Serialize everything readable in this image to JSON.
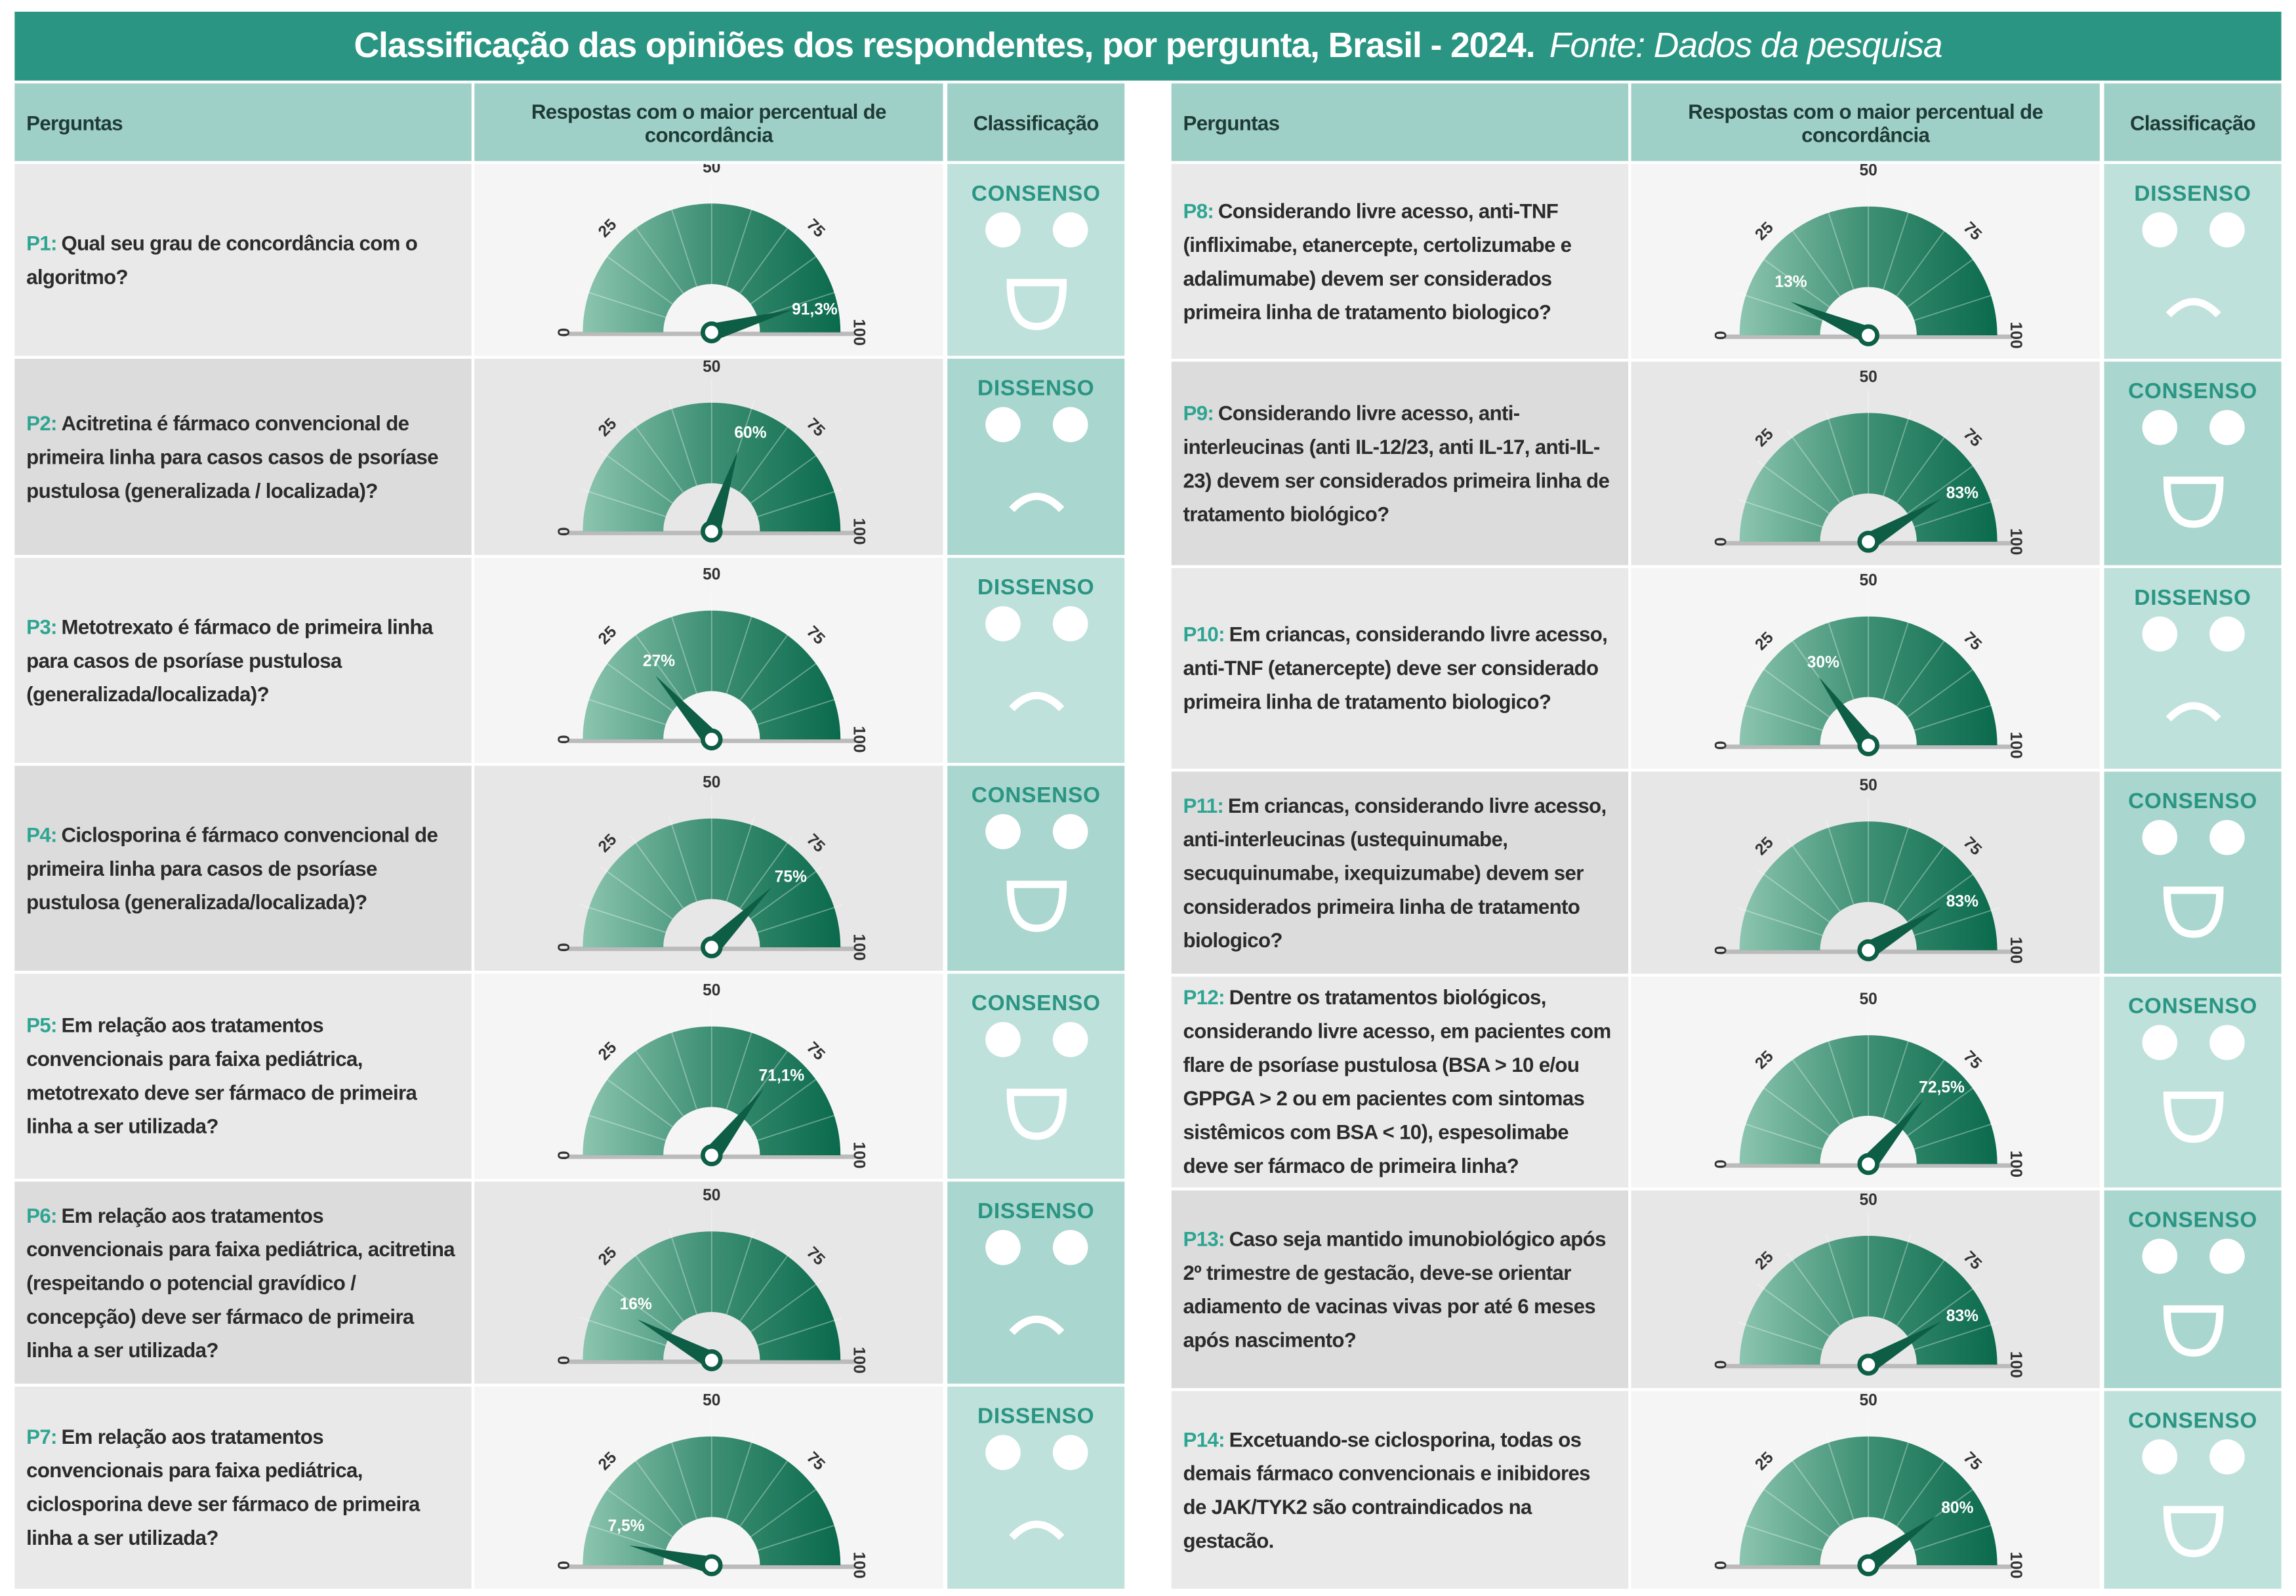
{
  "title": "Classificação das opiniões dos respondentes, por pergunta, Brasil - 2024.",
  "source": "Fonte: Dados da pesquisa",
  "headers": {
    "questions": "Perguntas",
    "responses": "Respostas com o maior percentual de concordância",
    "classification": "Classificação"
  },
  "gauge_ticks": [
    "0",
    "25",
    "50",
    "75",
    "100"
  ],
  "colors": {
    "title_bar": "#2a9583",
    "header": "#9fd0c8",
    "gauge_light": "#7fbfa9",
    "gauge_dark": "#0d6b4e",
    "consenso_text": "#2a9583"
  },
  "left": [
    {
      "id": "P1:",
      "text": "Qual seu grau de concordância com o algoritmo?",
      "value": 91.3,
      "label": "91,3%",
      "classification": "CONSENSO",
      "face": "smile-icon"
    },
    {
      "id": "P2:",
      "text": "Acitretina é fármaco convencional de primeira linha para casos casos de psoríase pustulosa (generalizada / localizada)?",
      "value": 60,
      "label": "60%",
      "classification": "DISSENSO",
      "face": "frown-icon"
    },
    {
      "id": "P3:",
      "text": "Metotrexato é fármaco de primeira linha para casos de psoríase pustulosa (generalizada/localizada)?",
      "value": 27,
      "label": "27%",
      "classification": "DISSENSO",
      "face": "frown-icon"
    },
    {
      "id": "P4:",
      "text": "Ciclosporina é fármaco convencional de primeira linha para casos de psoríase pustulosa (generalizada/localizada)?",
      "value": 75,
      "label": "75%",
      "classification": "CONSENSO",
      "face": "smile-icon"
    },
    {
      "id": "P5:",
      "text": "Em relação aos tratamentos convencionais para faixa pediátrica, metotrexato deve ser fármaco de primeira linha a ser utilizada?",
      "value": 71.1,
      "label": "71,1%",
      "classification": "CONSENSO",
      "face": "smile-icon"
    },
    {
      "id": "P6:",
      "text": "Em relação aos tratamentos convencionais para faixa pediátrica, acitretina (respeitando o potencial gravídico / concepção) deve ser fármaco de primeira linha a ser utilizada?",
      "value": 16,
      "label": "16%",
      "classification": "DISSENSO",
      "face": "frown-icon"
    },
    {
      "id": "P7:",
      "text": "Em relação aos tratamentos convencionais para faixa pediátrica, ciclosporina deve ser fármaco de primeira linha a ser utilizada?",
      "value": 7.5,
      "label": "7,5%",
      "classification": "DISSENSO",
      "face": "frown-icon"
    }
  ],
  "right": [
    {
      "id": "P8:",
      "text": "Considerando livre acesso, anti-TNF (infliximabe, etanercepte, certolizumabe e adalimumabe) devem ser considerados primeira linha de tratamento biologico?",
      "value": 13,
      "label": "13%",
      "classification": "DISSENSO",
      "face": "frown-icon"
    },
    {
      "id": "P9:",
      "text": "Considerando livre acesso, anti-interleucinas (anti IL-12/23, anti IL-17, anti-IL-23) devem ser considerados primeira linha de tratamento biológico?",
      "value": 83,
      "label": "83%",
      "classification": "CONSENSO",
      "face": "smile-icon"
    },
    {
      "id": "P10:",
      "text": "Em criancas, considerando livre acesso, anti-TNF (etanercepte) deve ser considerado primeira linha de tratamento biologico?",
      "value": 30,
      "label": "30%",
      "classification": "DISSENSO",
      "face": "frown-icon"
    },
    {
      "id": "P11:",
      "text": "Em criancas, considerando livre acesso, anti-interleucinas (ustequinumabe, secuquinumabe, ixequizumabe) devem ser considerados primeira linha de tratamento biologico?",
      "value": 83,
      "label": "83%",
      "classification": "CONSENSO",
      "face": "smile-icon"
    },
    {
      "id": "P12:",
      "text": "Dentre os tratamentos biológicos, considerando livre acesso, em pacientes com flare de psoríase pustulosa (BSA > 10 e/ou GPPGA > 2 ou em pacientes com sintomas sistêmicos com BSA < 10), espesolimabe deve ser fármaco de primeira linha?",
      "value": 72.5,
      "label": "72,5%",
      "classification": "CONSENSO",
      "face": "smile-icon"
    },
    {
      "id": "P13:",
      "text": "Caso seja mantido imunobiológico após 2º trimestre de gestacão, deve-se orientar adiamento de vacinas vivas por até 6 meses após nascimento?",
      "value": 83,
      "label": "83%",
      "classification": "CONSENSO",
      "face": "smile-icon"
    },
    {
      "id": "P14:",
      "text": "Excetuando-se ciclosporina, todas os demais fármaco convencionais e inibidores de JAK/TYK2 são contraindicados na gestacão.",
      "value": 80,
      "label": "80%",
      "classification": "CONSENSO",
      "face": "smile-icon"
    }
  ]
}
